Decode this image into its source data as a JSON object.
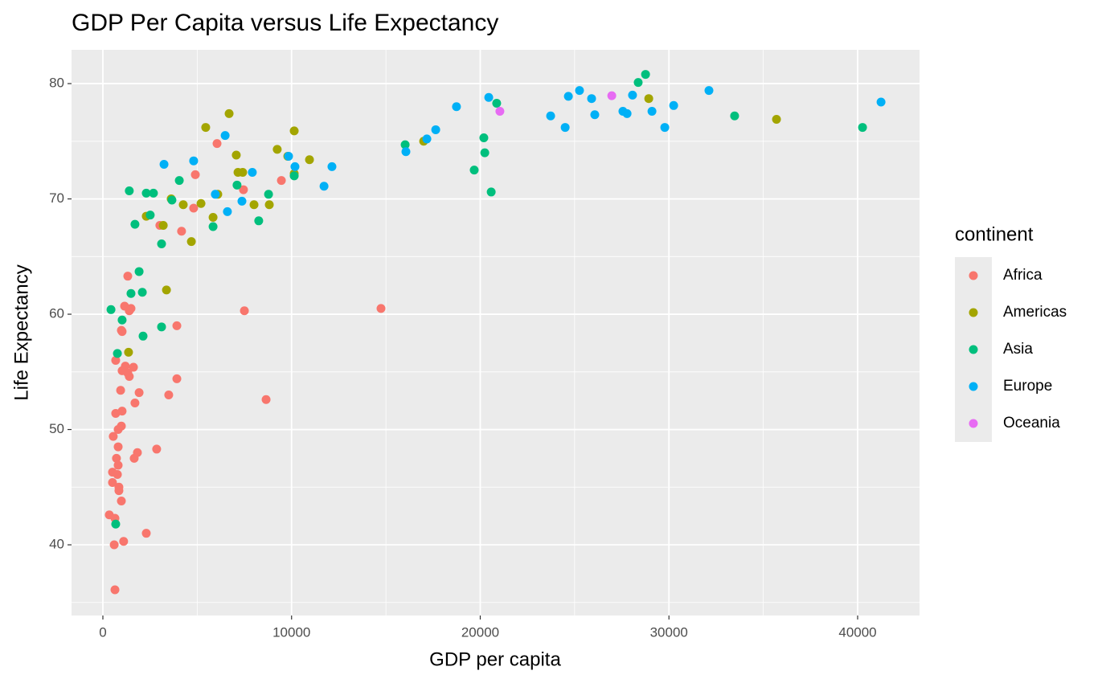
{
  "chart_data": {
    "type": "scatter",
    "title": "GDP Per Capita versus Life Expectancy",
    "x_label": "GDP per capita",
    "y_label": "Life Expectancy",
    "legend_title": "continent",
    "legend_position": "right",
    "grid": true,
    "minor_grid": true,
    "xlim": [
      -1661,
      43280
    ],
    "ylim": [
      33.87,
      82.93
    ],
    "xticks": [
      0,
      10000,
      20000,
      30000,
      40000
    ],
    "yticks": [
      40,
      50,
      60,
      70,
      80
    ],
    "series": [
      {
        "name": "Africa",
        "color": "#F8766D",
        "x": [
          640,
          600,
          1100,
          2300,
          340,
          640,
          980,
          850,
          850,
          510,
          510,
          810,
          770,
          720,
          1660,
          1830,
          2850,
          810,
          550,
          810,
          980,
          680,
          1020,
          940,
          1920,
          1700,
          3490,
          3920,
          8650,
          1400,
          1320,
          1190,
          1620,
          1020,
          680,
          980,
          1020,
          3920,
          1150,
          1400,
          1490,
          7500,
          14740,
          1320,
          4170,
          3020,
          4810,
          7450,
          4900,
          9460,
          6050
        ],
        "values": [
          36.1,
          40.0,
          40.3,
          41.0,
          42.6,
          42.3,
          43.8,
          44.7,
          45.0,
          45.4,
          46.3,
          46.9,
          46.1,
          47.5,
          47.5,
          48.0,
          48.3,
          48.5,
          49.4,
          50.0,
          50.3,
          51.4,
          51.6,
          53.4,
          53.2,
          52.3,
          53.0,
          54.4,
          52.6,
          54.6,
          54.9,
          55.5,
          55.4,
          55.1,
          56.0,
          58.6,
          58.5,
          59.0,
          60.7,
          60.3,
          60.5,
          60.3,
          60.5,
          63.3,
          67.2,
          67.7,
          69.2,
          70.8,
          72.1,
          71.6,
          74.8
        ]
      },
      {
        "name": "Americas",
        "color": "#A3A500",
        "x": [
          1360,
          3370,
          4690,
          2300,
          3200,
          5840,
          3620,
          4260,
          5200,
          6090,
          8010,
          8820,
          7160,
          7410,
          10140,
          10950,
          7070,
          9240,
          9800,
          5450,
          10140,
          6690,
          17000,
          28930,
          35700
        ],
        "values": [
          56.7,
          62.1,
          66.3,
          68.5,
          67.7,
          68.4,
          70.0,
          69.5,
          69.6,
          70.4,
          69.5,
          69.5,
          72.3,
          72.3,
          72.2,
          73.4,
          73.8,
          74.3,
          73.7,
          76.2,
          75.9,
          77.4,
          75.0,
          78.7,
          76.9
        ]
      },
      {
        "name": "Asia",
        "color": "#00BF7D",
        "x": [
          680,
          430,
          1020,
          770,
          2130,
          3110,
          1490,
          2090,
          1920,
          3110,
          1700,
          2510,
          5840,
          8260,
          8780,
          3660,
          4050,
          1400,
          2300,
          2680,
          7110,
          10140,
          16020,
          19680,
          20240,
          20190,
          20580,
          20870,
          28370,
          28760,
          33480,
          40260
        ],
        "values": [
          41.8,
          60.4,
          59.5,
          56.6,
          58.1,
          58.9,
          61.8,
          61.9,
          63.7,
          66.1,
          67.8,
          68.6,
          67.6,
          68.1,
          70.4,
          69.9,
          71.6,
          70.7,
          70.5,
          70.5,
          71.2,
          72.0,
          74.7,
          72.5,
          74.0,
          75.3,
          70.6,
          78.3,
          80.1,
          80.8,
          77.2,
          76.2
        ]
      },
      {
        "name": "Europe",
        "color": "#00B0F6",
        "x": [
          3240,
          4810,
          5960,
          6480,
          6600,
          7370,
          7920,
          9840,
          10180,
          11720,
          12140,
          16060,
          17170,
          17640,
          18740,
          20450,
          23730,
          24500,
          24670,
          25260,
          25900,
          26070,
          27560,
          27780,
          28070,
          29100,
          29780,
          30250,
          32120,
          41240
        ],
        "values": [
          73.0,
          73.3,
          70.4,
          75.5,
          68.9,
          69.8,
          72.3,
          73.7,
          72.8,
          71.1,
          72.8,
          74.1,
          75.2,
          76.0,
          78.0,
          78.8,
          77.2,
          76.2,
          78.9,
          79.4,
          78.7,
          77.3,
          77.6,
          77.4,
          79.0,
          77.6,
          76.2,
          78.1,
          79.4,
          78.4
        ]
      },
      {
        "name": "Oceania",
        "color": "#E76BF3",
        "x": [
          26970,
          21040
        ],
        "values": [
          78.95,
          77.6
        ]
      }
    ]
  }
}
